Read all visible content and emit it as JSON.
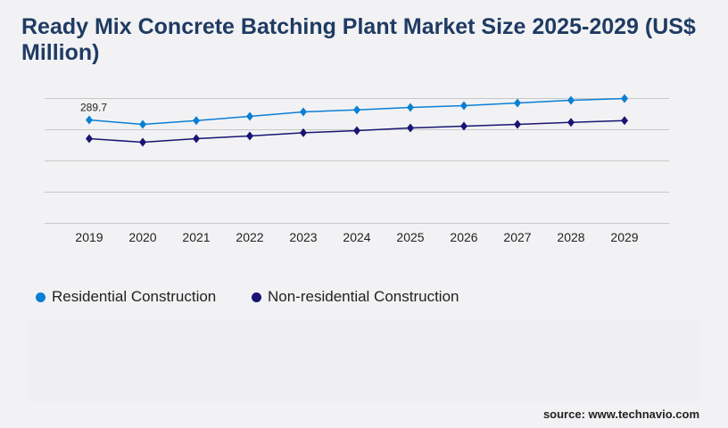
{
  "title": "Ready Mix Concrete Batching Plant Market Size 2025-2029 (US$ Million)",
  "source": "source: www.technavio.com",
  "colors": {
    "title": "#1f3b63",
    "residential": "#0a7fd4",
    "non_residential": "#1a1473",
    "grid": "#c8c8c8"
  },
  "chart_data": {
    "type": "line",
    "title": "Ready Mix Concrete Batching Plant Market Size 2025-2029 (US$ Million)",
    "xlabel": "",
    "ylabel": "",
    "categories": [
      "2019",
      "2020",
      "2021",
      "2022",
      "2023",
      "2024",
      "2025",
      "2026",
      "2027",
      "2028",
      "2029"
    ],
    "ylim": [
      0,
      349.6
    ],
    "grid": true,
    "legend": "bottom-left",
    "series": [
      {
        "name": "Residential Construction",
        "color": "#0a7fd4",
        "marker": "diamond",
        "values": [
          289.7,
          277.2,
          287.9,
          299.7,
          312.2,
          317.9,
          324.7,
          329.7,
          337.2,
          344.7,
          349.7
        ],
        "data_labels": [
          "289.7",
          null,
          null,
          null,
          null,
          null,
          null,
          null,
          null,
          null,
          null
        ]
      },
      {
        "name": "Non-residential Construction",
        "color": "#1a1473",
        "marker": "diamond",
        "values": [
          237.2,
          227.2,
          237.2,
          244.7,
          253.7,
          259.7,
          267.2,
          272.2,
          277.2,
          282.9,
          287.9
        ]
      }
    ]
  }
}
